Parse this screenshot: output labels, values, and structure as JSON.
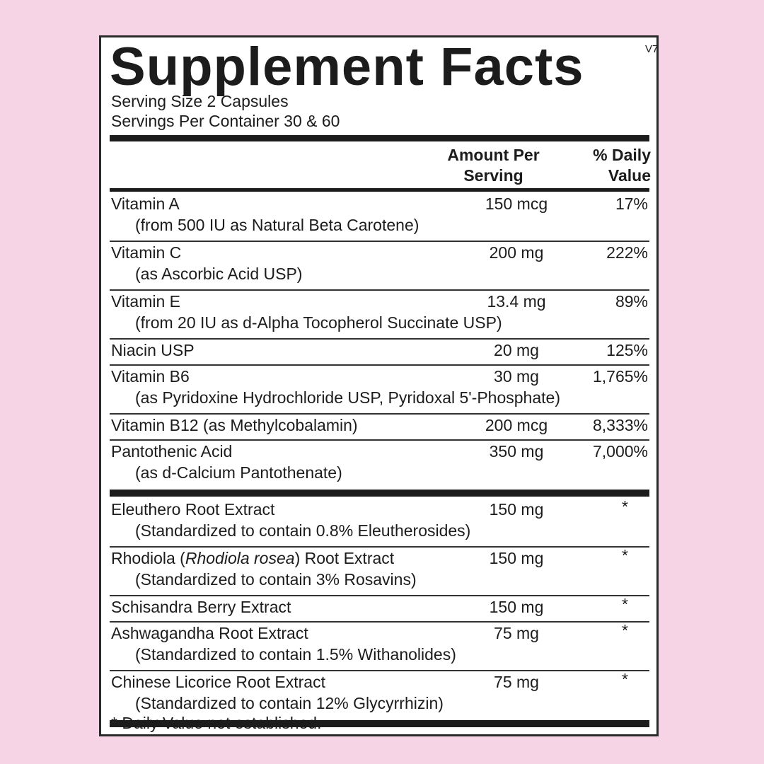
{
  "title": "Supplement Facts",
  "version": "V7",
  "serving_size": "Serving Size  2 Capsules",
  "servings_per_container": "Servings Per Container  30 & 60",
  "header": {
    "amount": "Amount Per Serving",
    "daily_value": "% Daily Value"
  },
  "vitamins": [
    {
      "name": "Vitamin A",
      "sub": "(from 500 IU as Natural Beta Carotene)",
      "amount": "150 mcg",
      "dv": "17%"
    },
    {
      "name": "Vitamin C",
      "sub": "(as Ascorbic Acid USP)",
      "amount": "200 mg",
      "dv": "222%"
    },
    {
      "name": "Vitamin E",
      "sub": "(from 20 IU as d-Alpha Tocopherol Succinate USP)",
      "amount": "13.4 mg",
      "dv": "89%"
    },
    {
      "name": "Niacin USP",
      "sub": "",
      "amount": "20 mg",
      "dv": "125%"
    },
    {
      "name": "Vitamin B6",
      "sub": "(as Pyridoxine Hydrochloride USP, Pyridoxal 5'-Phosphate)",
      "amount": "30 mg",
      "dv": "1,765%"
    },
    {
      "name": "Vitamin B12 (as Methylcobalamin)",
      "sub": "",
      "amount": "200 mcg",
      "dv": "8,333%"
    },
    {
      "name": "Pantothenic Acid",
      "sub": "(as d-Calcium Pantothenate)",
      "amount": "350 mg",
      "dv": "7,000%"
    }
  ],
  "extracts": [
    {
      "name": "Eleuthero Root Extract",
      "sub": "(Standardized to contain 0.8% Eleutherosides)",
      "amount": "150 mg",
      "dv": "*"
    },
    {
      "name": "Rhodiola (",
      "name_italic": "Rhodiola rosea",
      "name_end": ") Root Extract",
      "sub": "(Standardized to contain 3% Rosavins)",
      "amount": "150 mg",
      "dv": "*"
    },
    {
      "name": "Schisandra Berry Extract",
      "sub": "",
      "amount": "150 mg",
      "dv": "*"
    },
    {
      "name": "Ashwagandha Root Extract",
      "sub": "(Standardized to contain 1.5% Withanolides)",
      "amount": "75 mg",
      "dv": "*"
    },
    {
      "name": "Chinese Licorice Root Extract",
      "sub": "(Standardized to contain 12% Glycyrrhizin)",
      "amount": "75 mg",
      "dv": "*"
    }
  ],
  "footnote": "* Daily Value not established."
}
